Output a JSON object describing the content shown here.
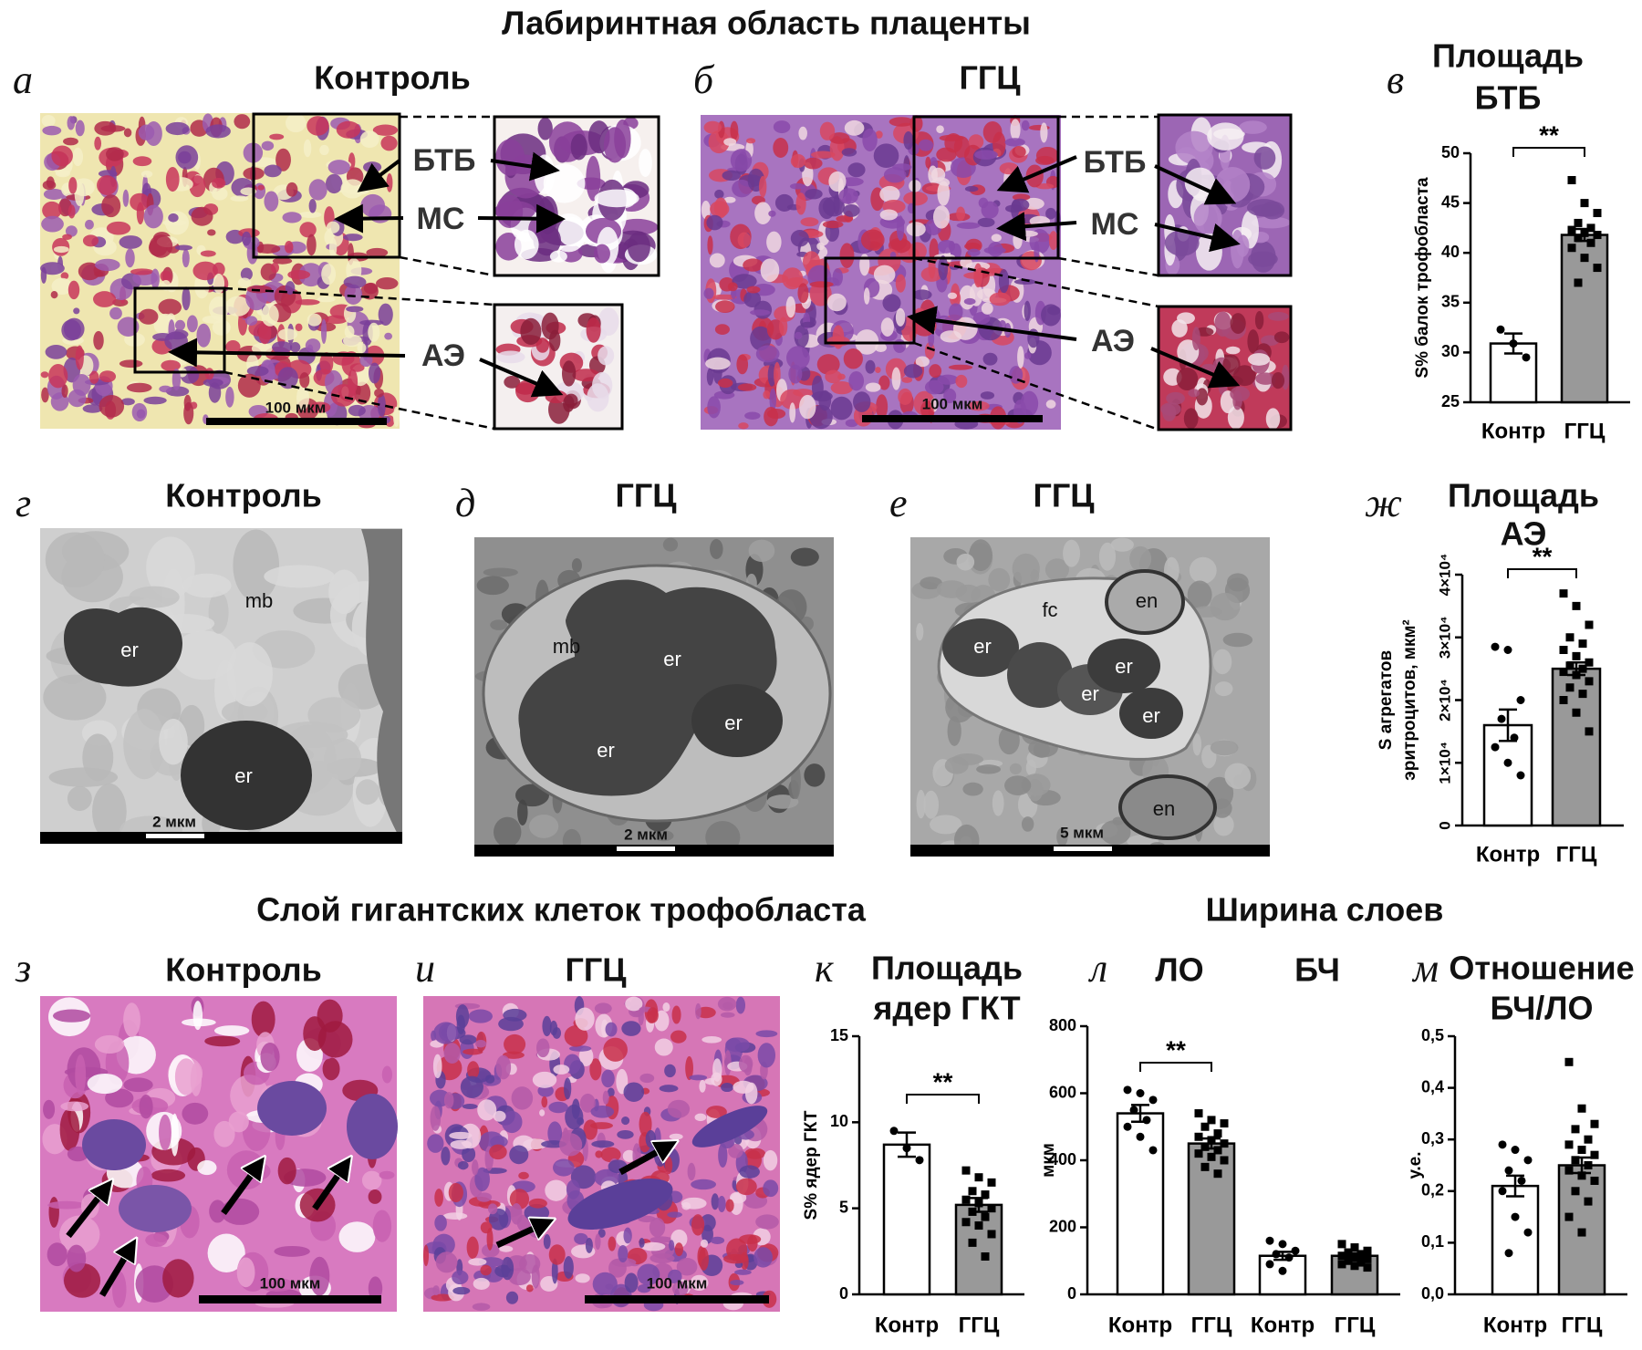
{
  "title": "Лабиринтная область плаценты",
  "section_titles": [
    "Слой гигантских клеток трофобласта",
    "Ширина слоев"
  ],
  "panels": [
    {
      "letter": "а",
      "title": "Контроль",
      "labels": [
        "БТБ",
        "МС",
        "АЭ"
      ],
      "scale_bar": "100 мкм"
    },
    {
      "letter": "б",
      "title": "ГГЦ",
      "labels": [
        "БТБ",
        "МС",
        "АЭ"
      ],
      "scale_bar": "100 мкм"
    },
    {
      "letter": "г",
      "title": "Контроль",
      "labels": [
        "mb",
        "er",
        "er"
      ],
      "scale_bar": "2 мкм"
    },
    {
      "letter": "д",
      "title": "ГГЦ",
      "labels": [
        "mb",
        "er",
        "er",
        "er"
      ],
      "scale_bar": "2 мкм"
    },
    {
      "letter": "е",
      "title": "ГГЦ",
      "labels": [
        "fc",
        "en",
        "er",
        "er",
        "er",
        "er",
        "en"
      ],
      "scale_bar": "5 мкм"
    },
    {
      "letter": "з",
      "title": "Контроль",
      "scale_bar": "100 мкм"
    },
    {
      "letter": "и",
      "title": "ГГЦ",
      "scale_bar": "100 мкм"
    }
  ],
  "chart_data": [
    {
      "type": "bar",
      "letter": "в",
      "title": [
        "Площадь",
        "БТБ"
      ],
      "ylabel": "S% балок трофобласта",
      "categories": [
        "Контр",
        "ГГЦ"
      ],
      "values": [
        30.9,
        41.8
      ],
      "errors": [
        1.0,
        0.6
      ],
      "points": [
        [
          32.3,
          30.9,
          29.5
        ],
        [
          47.3,
          45,
          44,
          43,
          42.5,
          42.3,
          42,
          41.8,
          41.5,
          41,
          40.5,
          39.5,
          38.5,
          37
        ]
      ],
      "colors": [
        "#ffffff",
        "#999999"
      ],
      "ylim": [
        25,
        50
      ],
      "yticks": [
        25,
        30,
        35,
        40,
        45,
        50
      ],
      "significance": "**"
    },
    {
      "type": "bar",
      "letter": "ж",
      "title": [
        "Площадь",
        "АЭ"
      ],
      "ylabel": [
        "S агрегатов",
        "эритроцитов, мкм²"
      ],
      "categories": [
        "Контр",
        "ГГЦ"
      ],
      "values": [
        16000,
        25000
      ],
      "errors": [
        2500,
        1000
      ],
      "points": [
        [
          28500,
          28000,
          20000,
          17000,
          14000,
          12500,
          10000,
          8000
        ],
        [
          37000,
          35000,
          32000,
          30000,
          29000,
          28000,
          27000,
          26000,
          25500,
          25000,
          24500,
          24000,
          23000,
          22000,
          21000,
          20000,
          18000,
          15000
        ]
      ],
      "colors": [
        "#ffffff",
        "#999999"
      ],
      "ylim": [
        0,
        40000
      ],
      "yticks": [
        0,
        {
          "value": 10000,
          "label": "1×10⁴"
        },
        {
          "value": 20000,
          "label": "2×10⁴"
        },
        {
          "value": 30000,
          "label": "3×10⁴"
        },
        {
          "value": 40000,
          "label": "4×10⁴"
        }
      ],
      "significance": "**"
    },
    {
      "type": "bar",
      "letter": "к",
      "title": [
        "Площадь",
        "ядер ГКТ"
      ],
      "ylabel": "S% ядер ГКТ",
      "categories": [
        "Контр",
        "ГГЦ"
      ],
      "values": [
        8.7,
        5.2
      ],
      "errors": [
        0.7,
        0.4
      ],
      "points": [
        [
          9.5,
          8.5,
          7.8
        ],
        [
          7.2,
          6.8,
          6.5,
          6.0,
          5.8,
          5.5,
          5.3,
          5.0,
          4.8,
          4.5,
          4.2,
          4.0,
          3.5,
          3.0,
          2.2
        ]
      ],
      "colors": [
        "#ffffff",
        "#999999"
      ],
      "ylim": [
        0,
        15
      ],
      "yticks": [
        0,
        5,
        10,
        15
      ],
      "significance": "**"
    },
    {
      "type": "bar",
      "letter": "л",
      "groups": [
        "ЛО",
        "БЧ"
      ],
      "ylabel": "мкм",
      "categories": [
        "Контр",
        "ГГЦ",
        "Контр",
        "ГГЦ"
      ],
      "values": [
        540,
        450,
        115,
        115
      ],
      "errors": [
        25,
        15,
        12,
        8
      ],
      "points": [
        [
          610,
          600,
          580,
          550,
          520,
          500,
          470,
          430
        ],
        [
          540,
          520,
          510,
          500,
          480,
          470,
          460,
          450,
          440,
          430,
          420,
          410,
          400,
          380,
          360
        ],
        [
          160,
          150,
          130,
          120,
          110,
          90,
          70
        ],
        [
          150,
          140,
          130,
          125,
          120,
          115,
          110,
          105,
          100,
          95,
          90,
          85,
          80
        ]
      ],
      "colors": [
        "#ffffff",
        "#999999",
        "#ffffff",
        "#999999"
      ],
      "ylim": [
        0,
        800
      ],
      "yticks": [
        0,
        200,
        400,
        600,
        800
      ],
      "significance": "**"
    },
    {
      "type": "bar",
      "letter": "м",
      "title": [
        "Отношение",
        "БЧ/ЛО"
      ],
      "ylabel": "у.е.",
      "categories": [
        "Контр",
        "ГГЦ"
      ],
      "values": [
        0.21,
        0.25
      ],
      "errors": [
        0.02,
        0.015
      ],
      "points": [
        [
          0.29,
          0.28,
          0.26,
          0.24,
          0.22,
          0.2,
          0.15,
          0.12,
          0.08
        ],
        [
          0.45,
          0.36,
          0.33,
          0.32,
          0.3,
          0.29,
          0.28,
          0.27,
          0.26,
          0.25,
          0.24,
          0.23,
          0.22,
          0.2,
          0.18,
          0.15,
          0.12
        ]
      ],
      "colors": [
        "#ffffff",
        "#999999"
      ],
      "ylim": [
        0,
        0.5
      ],
      "yticks": [
        {
          "value": 0,
          "label": "0,0"
        },
        {
          "value": 0.1,
          "label": "0,1"
        },
        {
          "value": 0.2,
          "label": "0,2"
        },
        {
          "value": 0.3,
          "label": "0,3"
        },
        {
          "value": 0.4,
          "label": "0,4"
        },
        {
          "value": 0.5,
          "label": "0,5"
        }
      ]
    }
  ]
}
